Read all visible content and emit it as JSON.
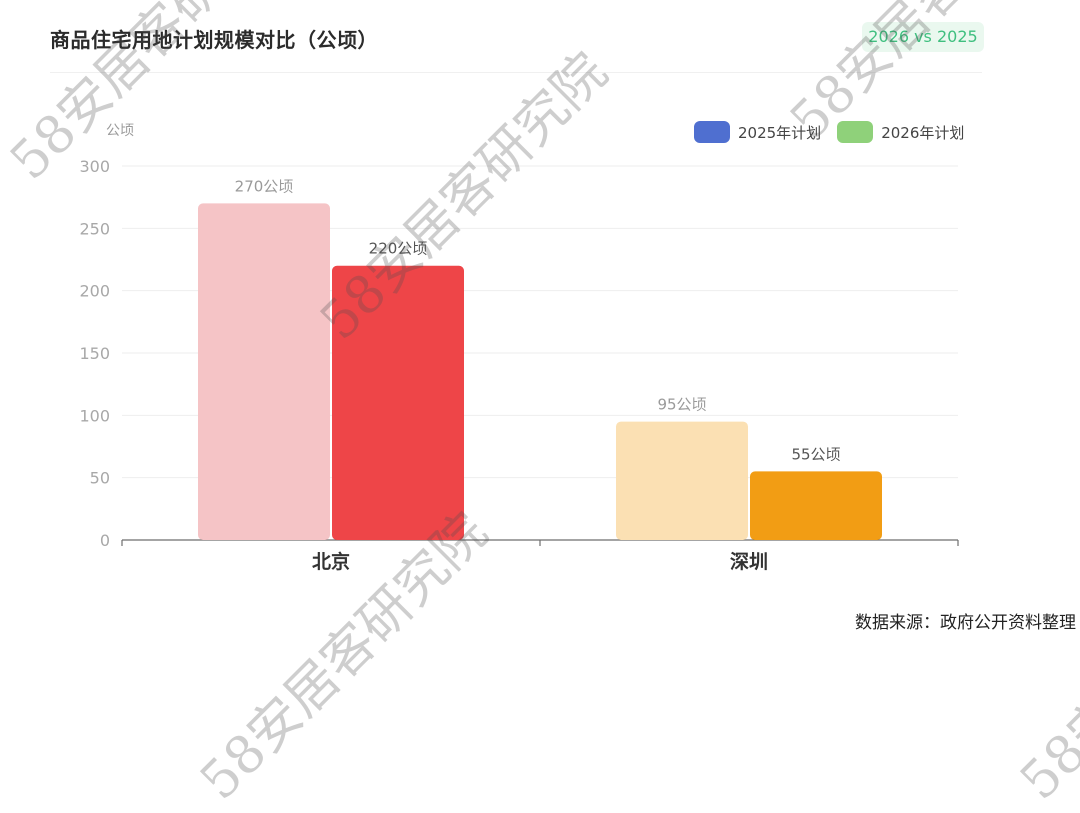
{
  "header": {
    "title": "商品住宅用地计划规模对比（公顷）",
    "badge": "2026 vs 2025"
  },
  "footer": {
    "source": "数据来源：政府公开资料整理"
  },
  "watermark": {
    "text": "58安居客研究院"
  },
  "colors": {
    "legend_2025": "#4f6fd0",
    "legend_2026": "#8fd17a",
    "beijing_2025": "#f5c4c6",
    "beijing_2026": "#ee4548",
    "shenzhen_2025": "#fbe0b3",
    "shenzhen_2026": "#f29d14"
  },
  "chart_data": {
    "type": "bar",
    "title": "商品住宅用地计划规模对比（公顷）",
    "unit_label": "公顷",
    "categories": [
      "北京",
      "深圳"
    ],
    "series": [
      {
        "name": "2025年计划",
        "values": [
          270,
          95
        ],
        "labels": [
          "270公顷",
          "95公顷"
        ]
      },
      {
        "name": "2026年计划",
        "values": [
          220,
          55
        ],
        "labels": [
          "220公顷",
          "55公顷"
        ]
      }
    ],
    "ylim": [
      0,
      300
    ],
    "yticks": [
      "0",
      "50",
      "100",
      "150",
      "200",
      "250",
      "300"
    ],
    "grid": true,
    "legend_position": "top-right"
  }
}
